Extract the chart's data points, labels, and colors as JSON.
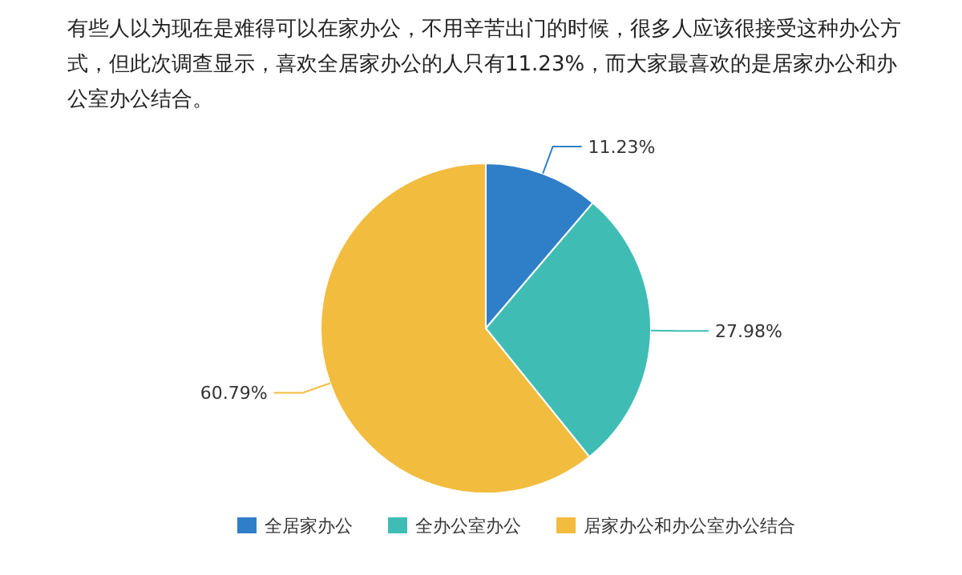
{
  "chart_data": {
    "type": "pie",
    "title": "有些人以为现在是难得可以在家办公，不用辛苦出门的时候，很多人应该很接受这种办公方式，但此次调查显示，喜欢全居家办公的人只有11.23%，而大家最喜欢的是居家办公和办公室办公结合。",
    "categories": [
      "全居家办公",
      "全办公室办公",
      "居家办公和办公室办公结合"
    ],
    "values": [
      11.23,
      27.98,
      60.79
    ],
    "colors": [
      "#2f7fc8",
      "#3fbdb5",
      "#f2bc3e"
    ],
    "value_labels": [
      "11.23%",
      "27.98%",
      "60.79%"
    ],
    "legend": "bottom"
  }
}
